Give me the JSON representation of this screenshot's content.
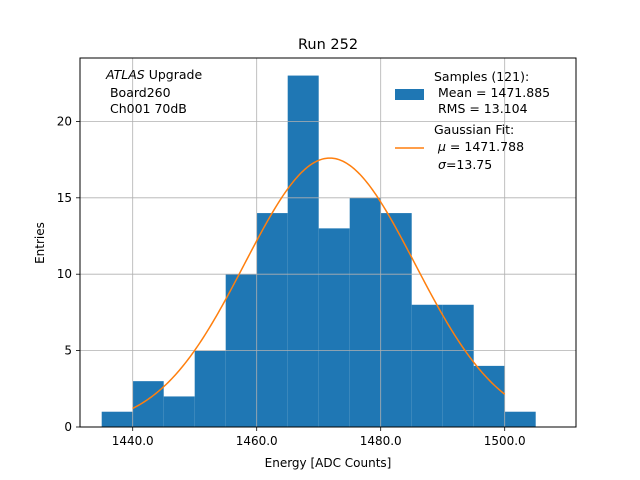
{
  "chart_data": {
    "type": "bar",
    "title": "Run 252",
    "xlabel": "Energy [ADC Counts]",
    "ylabel": "Entries",
    "xlim": [
      1431.5,
      1511.5
    ],
    "ylim": [
      0,
      24.15
    ],
    "x_ticks": [
      1440,
      1460,
      1480,
      1500
    ],
    "x_tick_labels": [
      "1440.0",
      "1460.0",
      "1480.0",
      "1500.0"
    ],
    "y_ticks": [
      0,
      5,
      10,
      15,
      20
    ],
    "y_tick_labels": [
      "0",
      "5",
      "10",
      "15",
      "20"
    ],
    "grid": true,
    "histogram": {
      "bin_edges": [
        1435,
        1440,
        1445,
        1450,
        1455,
        1460,
        1465,
        1470,
        1475,
        1480,
        1485,
        1490,
        1495,
        1500,
        1505
      ],
      "counts": [
        1,
        3,
        2,
        5,
        10,
        14,
        23,
        13,
        15,
        14,
        8,
        8,
        4,
        1
      ],
      "color": "#1f77b4"
    },
    "fit": {
      "type": "gaussian",
      "mu": 1471.788,
      "sigma": 13.75,
      "amplitude": 17.6,
      "x_range": [
        1440,
        1500
      ],
      "color": "#ff7f0e"
    },
    "annotation": {
      "italic": "ATLAS",
      "line1_rest": " Upgrade",
      "line2": " Board260",
      "line3": " Ch001 70dB"
    },
    "legend": {
      "placement": "top-right",
      "hist_lines": [
        "Samples (121):",
        " Mean = 1471.885",
        " RMS = 13.104"
      ],
      "fit_title": "Gaussian Fit:",
      "fit_mu_symbol": "μ",
      "fit_mu_rest": " = 1471.788",
      "fit_sigma_symbol": "σ",
      "fit_sigma_rest": "=13.75"
    }
  }
}
